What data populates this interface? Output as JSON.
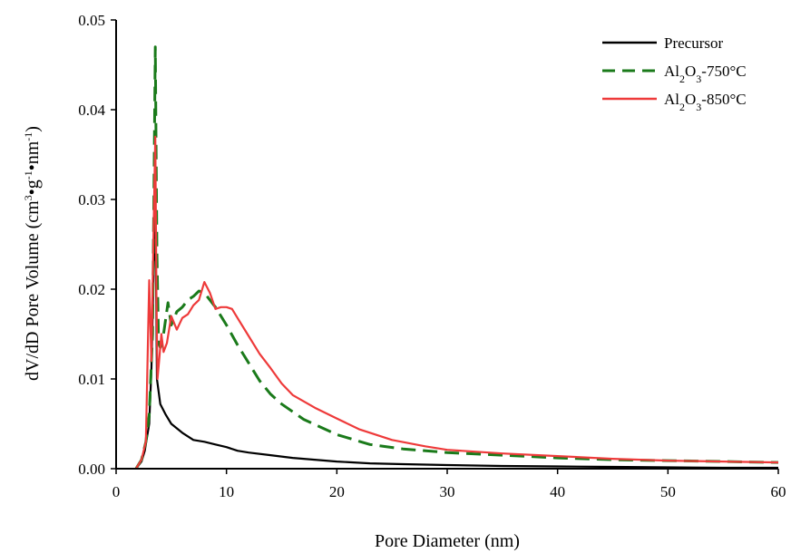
{
  "chart_data": {
    "type": "line",
    "xlabel": "Pore Diameter (nm)",
    "ylabel_parts": [
      "dV/dD Pore Volume (cm",
      "3",
      "•g",
      "-1",
      "•nm",
      "-1",
      ")"
    ],
    "xlim": [
      0,
      60
    ],
    "ylim": [
      0,
      0.05
    ],
    "x_ticks": [
      0,
      10,
      20,
      30,
      40,
      50,
      60
    ],
    "x_tick_labels": [
      "0",
      "10",
      "20",
      "30",
      "40",
      "50",
      "60"
    ],
    "y_ticks": [
      0,
      0.01,
      0.02,
      0.03,
      0.04,
      0.05
    ],
    "y_tick_labels": [
      "0.00",
      "0.01",
      "0.02",
      "0.03",
      "0.04",
      "0.05"
    ],
    "grid": false,
    "legend_position": "top-right",
    "series": [
      {
        "name": "Precursor",
        "color": "#000000",
        "style": "solid",
        "legend_parts": [
          "Precursor"
        ],
        "x": [
          1.8,
          2.3,
          2.6,
          3.0,
          3.2,
          3.4,
          3.55,
          3.7,
          4.0,
          4.5,
          5.0,
          6.0,
          7.0,
          8.0,
          9.0,
          10.0,
          11.0,
          12.0,
          14.0,
          16.0,
          18.0,
          20.0,
          23.0,
          26.0,
          30.0,
          35.0,
          40.0,
          45.0,
          50.0,
          55.0,
          60.0
        ],
        "y": [
          0.0,
          0.0008,
          0.002,
          0.005,
          0.011,
          0.022,
          0.031,
          0.01,
          0.0072,
          0.006,
          0.005,
          0.004,
          0.0032,
          0.003,
          0.0027,
          0.0024,
          0.002,
          0.0018,
          0.0015,
          0.0012,
          0.001,
          0.0008,
          0.0006,
          0.0005,
          0.0004,
          0.0003,
          0.00025,
          0.0002,
          0.00015,
          0.0001,
          0.0001
        ]
      },
      {
        "name": "Al2O3-750°C",
        "color": "#1a7a1a",
        "style": "dashed",
        "legend_parts": [
          "Al",
          "2",
          "O",
          "3",
          "-750°C"
        ],
        "x": [
          1.8,
          2.3,
          2.7,
          3.0,
          3.3,
          3.55,
          3.7,
          3.85,
          4.0,
          4.3,
          4.7,
          5.0,
          5.5,
          6.0,
          6.5,
          7.0,
          7.5,
          8.0,
          8.5,
          9.0,
          10.0,
          11.0,
          12.0,
          13.0,
          14.0,
          15.0,
          17.0,
          20.0,
          23.0,
          26.0,
          30.0,
          35.0,
          40.0,
          45.0,
          50.0,
          55.0,
          60.0
        ],
        "y": [
          0.0,
          0.001,
          0.003,
          0.006,
          0.015,
          0.047,
          0.024,
          0.014,
          0.0135,
          0.015,
          0.0185,
          0.016,
          0.0175,
          0.018,
          0.0188,
          0.0192,
          0.0198,
          0.0196,
          0.0188,
          0.018,
          0.016,
          0.0138,
          0.0118,
          0.0098,
          0.0083,
          0.0072,
          0.0055,
          0.0038,
          0.0027,
          0.0022,
          0.0018,
          0.0015,
          0.0012,
          0.001,
          0.0009,
          0.0008,
          0.0007
        ]
      },
      {
        "name": "Al2O3-850°C",
        "color": "#ee3a3a",
        "style": "solid",
        "legend_parts": [
          "Al",
          "2",
          "O",
          "3",
          "-850°C"
        ],
        "x": [
          1.8,
          2.3,
          2.7,
          3.0,
          3.2,
          3.4,
          3.55,
          3.65,
          3.75,
          3.9,
          4.1,
          4.3,
          4.6,
          5.0,
          5.5,
          6.0,
          6.5,
          7.0,
          7.5,
          8.0,
          8.5,
          9.0,
          9.5,
          10.0,
          10.5,
          11.0,
          12.0,
          13.0,
          14.0,
          15.0,
          16.0,
          18.0,
          20.0,
          22.0,
          25.0,
          28.0,
          30.0,
          35.0,
          40.0,
          45.0,
          50.0,
          55.0,
          60.0
        ],
        "y": [
          0.0,
          0.001,
          0.003,
          0.021,
          0.012,
          0.027,
          0.037,
          0.02,
          0.01,
          0.012,
          0.015,
          0.013,
          0.014,
          0.017,
          0.0155,
          0.0168,
          0.0172,
          0.0182,
          0.0188,
          0.0208,
          0.0196,
          0.0178,
          0.018,
          0.018,
          0.0178,
          0.0168,
          0.0148,
          0.0128,
          0.0112,
          0.0095,
          0.0082,
          0.0068,
          0.0056,
          0.0044,
          0.0032,
          0.0025,
          0.0021,
          0.0017,
          0.0014,
          0.0011,
          0.0009,
          0.0008,
          0.0007
        ]
      }
    ]
  }
}
